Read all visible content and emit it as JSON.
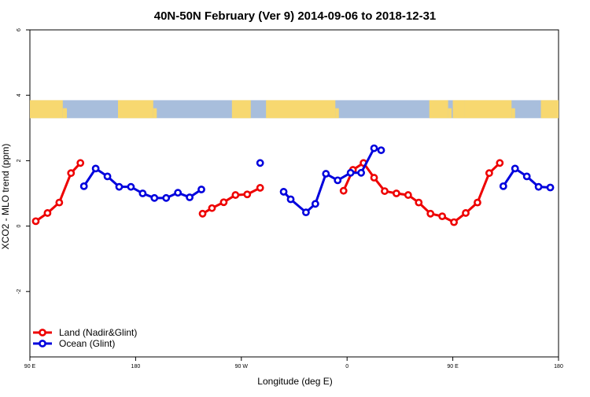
{
  "chart_data": {
    "type": "line",
    "title": "40N-50N February (Ver 9)   2014-09-06 to 2018-12-31",
    "xlabel": "Longitude (deg E)",
    "ylabel": "XCO2 - MLO trend (ppm)",
    "x_ticks": [
      "90 E",
      "180",
      "90 W",
      "0",
      "90 E",
      "180"
    ],
    "y_ticks": [
      "-2",
      "0",
      "2",
      "4",
      "6"
    ],
    "xlim": [
      90,
      540
    ],
    "ylim": [
      -4,
      6
    ],
    "grid": false,
    "legend_position": "bottom-left",
    "map_strip": {
      "ymin": 3.3,
      "ymax": 3.85,
      "land_color": "#F7D870",
      "ocean_color": "#A8BEDC"
    },
    "series": [
      {
        "name": "Land (Nadir&Glint)",
        "color": "#EE0000",
        "segments": [
          [
            [
              95,
              0.15
            ],
            [
              105,
              0.4
            ],
            [
              115,
              0.72
            ],
            [
              125,
              1.62
            ],
            [
              133,
              1.93
            ]
          ],
          [
            [
              237,
              0.38
            ],
            [
              245,
              0.55
            ],
            [
              255,
              0.73
            ],
            [
              265,
              0.95
            ],
            [
              275,
              0.97
            ],
            [
              286,
              1.17
            ]
          ],
          [
            [
              357,
              1.08
            ],
            [
              365,
              1.72
            ],
            [
              374,
              1.93
            ],
            [
              383,
              1.48
            ],
            [
              392,
              1.07
            ],
            [
              402,
              1.0
            ],
            [
              412,
              0.95
            ],
            [
              421,
              0.72
            ],
            [
              431,
              0.38
            ],
            [
              441,
              0.3
            ],
            [
              451,
              0.12
            ],
            [
              461,
              0.4
            ],
            [
              471,
              0.72
            ],
            [
              481,
              1.62
            ],
            [
              490,
              1.93
            ]
          ]
        ]
      },
      {
        "name": "Ocean (Glint)",
        "color": "#0000DD",
        "segments": [
          [
            [
              136,
              1.22
            ],
            [
              146,
              1.76
            ],
            [
              156,
              1.52
            ],
            [
              166,
              1.2
            ],
            [
              176,
              1.2
            ],
            [
              186,
              1.0
            ],
            [
              196,
              0.86
            ],
            [
              206,
              0.86
            ],
            [
              216,
              1.02
            ],
            [
              226,
              0.88
            ],
            [
              236,
              1.12
            ]
          ],
          [
            [
              286,
              1.93
            ]
          ],
          [
            [
              306,
              1.05
            ],
            [
              312,
              0.82
            ],
            [
              325,
              0.42
            ],
            [
              333,
              0.68
            ],
            [
              342,
              1.6
            ],
            [
              352,
              1.4
            ],
            [
              363,
              1.63
            ],
            [
              372,
              1.63
            ],
            [
              383,
              2.38
            ],
            [
              389,
              2.32
            ]
          ],
          [
            [
              493,
              1.22
            ],
            [
              503,
              1.76
            ],
            [
              513,
              1.52
            ],
            [
              523,
              1.2
            ],
            [
              533,
              1.18
            ]
          ]
        ]
      }
    ]
  }
}
